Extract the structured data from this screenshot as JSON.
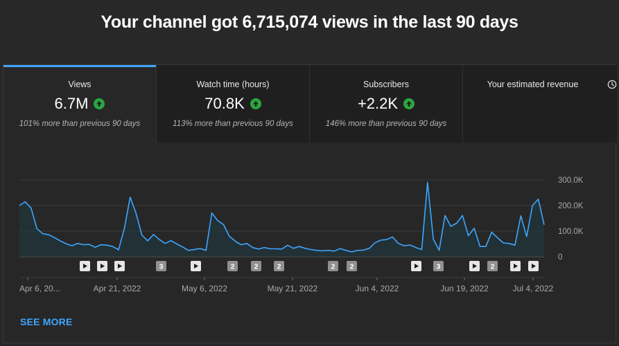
{
  "headline": "Your channel got 6,715,074 views in the last 90 days",
  "tabs": [
    {
      "label": "Views",
      "value": "6.7M",
      "note": "101% more than previous 90 days",
      "trend": "up"
    },
    {
      "label": "Watch time (hours)",
      "value": "70.8K",
      "note": "113% more than previous 90 days",
      "trend": "up"
    },
    {
      "label": "Subscribers",
      "value": "+2.2K",
      "note": "146% more than previous 90 days",
      "trend": "up"
    },
    {
      "label": "Your estimated revenue",
      "icon": "clock-icon"
    }
  ],
  "see_more": "SEE MORE",
  "colors": {
    "accent": "#3ea6ff",
    "trend_up": "#2ba640",
    "line": "#3ea6ff"
  },
  "chart_data": {
    "type": "area",
    "y_tick_labels": [
      "300.0K",
      "200.0K",
      "100.0K",
      "0"
    ],
    "ylim": [
      0,
      300000
    ],
    "x_tick_labels": [
      "Apr 6, 20...",
      "Apr 21, 2022",
      "May 6, 2022",
      "May 21, 2022",
      "Jun 4, 2022",
      "Jun 19, 2022",
      "Jul 4, 2022"
    ],
    "series": [
      {
        "values": [
          200000,
          215000,
          190000,
          110000,
          90000,
          86000,
          75000,
          62000,
          51000,
          43000,
          52000,
          47000,
          48000,
          37000,
          47000,
          45000,
          40000,
          27000,
          110000,
          233000,
          170000,
          85000,
          62000,
          87000,
          67000,
          52000,
          63000,
          50000,
          38000,
          25000,
          28000,
          32000,
          25000,
          171000,
          141000,
          126000,
          80000,
          61000,
          47000,
          52000,
          36000,
          30000,
          36000,
          31000,
          31000,
          30000,
          45000,
          33000,
          40000,
          33000,
          28000,
          25000,
          23000,
          25000,
          22000,
          32000,
          25000,
          19000,
          25000,
          26000,
          33000,
          55000,
          65000,
          67000,
          77000,
          52000,
          43000,
          46000,
          36000,
          28000,
          290000,
          68000,
          25000,
          161000,
          119000,
          131000,
          161000,
          82000,
          111000,
          40000,
          40000,
          96000,
          74000,
          54000,
          52000,
          45000,
          160000,
          79000,
          200000,
          225000,
          125000
        ]
      }
    ],
    "markers": [
      {
        "kind": "play",
        "label": ""
      },
      {
        "kind": "play",
        "label": ""
      },
      {
        "kind": "play",
        "label": ""
      },
      {
        "kind": "count",
        "label": "3"
      },
      {
        "kind": "play",
        "label": ""
      },
      {
        "kind": "count",
        "label": "2"
      },
      {
        "kind": "count",
        "label": "2"
      },
      {
        "kind": "count",
        "label": "2"
      },
      {
        "kind": "count",
        "label": "2"
      },
      {
        "kind": "count",
        "label": "2"
      },
      {
        "kind": "play",
        "label": ""
      },
      {
        "kind": "count",
        "label": "3"
      },
      {
        "kind": "play",
        "label": ""
      },
      {
        "kind": "count",
        "label": "2"
      },
      {
        "kind": "play",
        "label": ""
      },
      {
        "kind": "play",
        "label": ""
      }
    ]
  }
}
